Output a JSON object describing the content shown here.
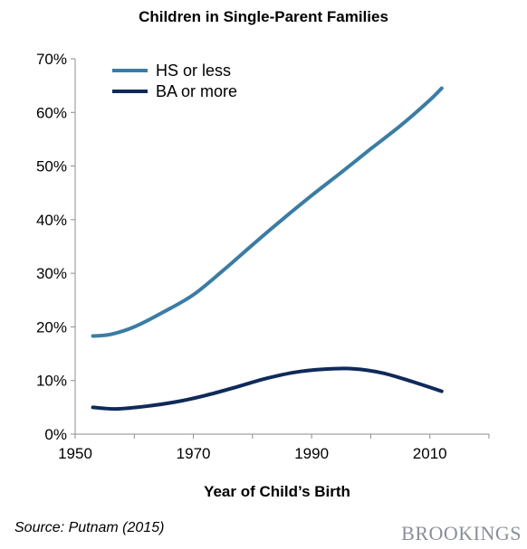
{
  "chart_data": {
    "type": "line",
    "title": "Children in Single-Parent Families",
    "xlabel": "Year of Child’s Birth",
    "ylabel": "",
    "xlim": [
      1950,
      2020
    ],
    "ylim": [
      0,
      70
    ],
    "x_ticks": [
      1950,
      1970,
      1990,
      2010
    ],
    "y_ticks": [
      0,
      10,
      20,
      30,
      40,
      50,
      60,
      70
    ],
    "y_tick_labels": [
      "0%",
      "10%",
      "20%",
      "30%",
      "40%",
      "50%",
      "60%",
      "70%"
    ],
    "x_tick_labels": [
      "1950",
      "1970",
      "1990",
      "2010"
    ],
    "grid": false,
    "legend_position": "top-left",
    "series": [
      {
        "name": "HS or less",
        "color": "#3b7ca4",
        "x": [
          1953,
          1956,
          1960,
          1965,
          1970,
          1975,
          1980,
          1985,
          1990,
          1995,
          2000,
          2005,
          2010,
          2012
        ],
        "y": [
          18.3,
          18.6,
          20.0,
          22.8,
          26.0,
          30.5,
          35.3,
          40.0,
          44.5,
          48.8,
          53.2,
          57.5,
          62.3,
          64.5
        ]
      },
      {
        "name": "BA or more",
        "color": "#0f2a5a",
        "x": [
          1953,
          1957,
          1962,
          1967,
          1972,
          1977,
          1982,
          1987,
          1992,
          1997,
          2002,
          2007,
          2012
        ],
        "y": [
          5.0,
          4.7,
          5.2,
          6.0,
          7.2,
          8.7,
          10.3,
          11.5,
          12.1,
          12.2,
          11.4,
          9.8,
          8.0
        ]
      }
    ]
  },
  "footer": {
    "source": "Source: Putnam (2015)",
    "brand": "BROOKINGS"
  }
}
